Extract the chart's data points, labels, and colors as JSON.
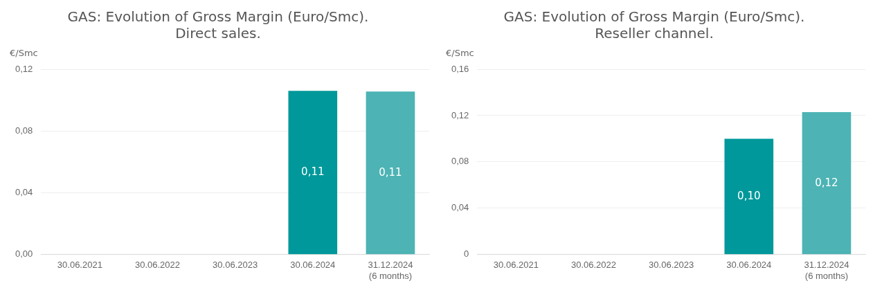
{
  "chart_data": [
    {
      "type": "bar",
      "title": "GAS: Evolution of Gross Margin (Euro/Smc).\nDirect sales.",
      "ylabel": "€/Smc",
      "categories": [
        "30.06.2021",
        "30.06.2022",
        "30.06.2023",
        "30.06.2024",
        "31.12.2024\n(6 months)"
      ],
      "values": [
        null,
        null,
        null,
        0.106,
        0.1055
      ],
      "colors": [
        "#00989a",
        "#00989a",
        "#00989a",
        "#00989a",
        "#4db3b4"
      ],
      "value_labels": [
        null,
        null,
        null,
        "0,11",
        "0,11"
      ],
      "ylim": [
        0,
        0.12
      ],
      "yticks": [
        {
          "value": 0,
          "label": "0,00"
        },
        {
          "value": 0.04,
          "label": "0,04"
        },
        {
          "value": 0.08,
          "label": "0,08"
        },
        {
          "value": 0.12,
          "label": "0,12"
        }
      ],
      "grid": "y",
      "legend": false
    },
    {
      "type": "bar",
      "title": "GAS: Evolution of Gross Margin (Euro/Smc).\nReseller channel.",
      "ylabel": "€/Smc",
      "categories": [
        "30.06.2021",
        "30.06.2022",
        "30.06.2023",
        "30.06.2024",
        "31.12.2024\n(6 months)"
      ],
      "values": [
        null,
        null,
        null,
        0.1,
        0.123
      ],
      "colors": [
        "#00989a",
        "#00989a",
        "#00989a",
        "#00989a",
        "#4db3b4"
      ],
      "value_labels": [
        null,
        null,
        null,
        "0,10",
        "0,12"
      ],
      "ylim": [
        0,
        0.16
      ],
      "yticks": [
        {
          "value": 0,
          "label": "0"
        },
        {
          "value": 0.04,
          "label": "0,04"
        },
        {
          "value": 0.08,
          "label": "0,08"
        },
        {
          "value": 0.12,
          "label": "0,12"
        },
        {
          "value": 0.16,
          "label": "0,16"
        }
      ],
      "grid": "y",
      "legend": false
    }
  ]
}
